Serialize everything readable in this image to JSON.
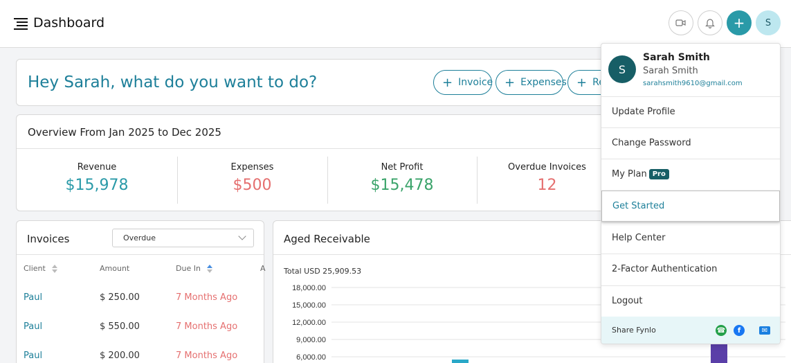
{
  "header": {
    "title": "Dashboard",
    "avatar_initial": "S",
    "add_symbol": "+"
  },
  "welcome": {
    "text": "Hey Sarah, what do you want to do?",
    "actions": [
      "Invoice",
      "Expenses",
      "Re"
    ]
  },
  "overview": {
    "title": "Overview From Jan 2025 to Dec 2025",
    "stats": [
      {
        "label": "Revenue",
        "value": "$15,978",
        "color": "#2a9aa8"
      },
      {
        "label": "Expenses",
        "value": "$500",
        "color": "#e56f6f"
      },
      {
        "label": "Net Profit",
        "value": "$15,478",
        "color": "#3aa36a"
      },
      {
        "label": "Overdue Invoices",
        "value": "12",
        "color": "#e56f6f"
      }
    ]
  },
  "invoices": {
    "title": "Invoices",
    "filter": "Overdue",
    "columns": [
      "Client",
      "Amount",
      "Due In",
      "A"
    ],
    "rows": [
      {
        "client": "Paul",
        "amount": "$ 250.00",
        "due": "7 Months Ago"
      },
      {
        "client": "Paul",
        "amount": "$ 550.00",
        "due": "7 Months Ago"
      },
      {
        "client": "Paul",
        "amount": "$ 200.00",
        "due": "7 Months Ago"
      }
    ]
  },
  "aged": {
    "title": "Aged Receivable",
    "total": "Total USD 25,909.53"
  },
  "chart_data": {
    "type": "bar",
    "yticks": [
      "18,000.00",
      "15,000.00",
      "12,000.00",
      "9,000.00",
      "6,000.00"
    ],
    "ylim": [
      0,
      18000
    ],
    "bar_colors": [
      "#2aa8c8",
      "#5a3fa8"
    ]
  },
  "menu": {
    "avatar_initial": "S",
    "name": "Sarah Smith",
    "subname": "Sarah Smith",
    "email": "sarahsmith9610@gmail.com",
    "items": [
      "Update Profile",
      "Change Password",
      "My Plan",
      "Get Started",
      "Help Center",
      "2-Factor Authentication",
      "Logout"
    ],
    "pro_badge": "Pro",
    "share_label": "Share Fynlo"
  },
  "colors": {
    "accent": "#1d7f99",
    "positive": "#3aa36a",
    "negative": "#e56f6f"
  }
}
